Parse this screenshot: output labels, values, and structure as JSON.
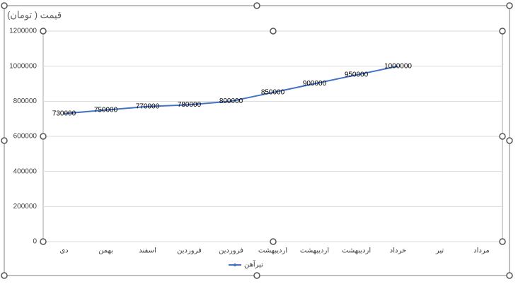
{
  "chart_data": {
    "type": "line",
    "title": "قیمت ( تومان)",
    "categories": [
      "دی",
      "بهمن",
      "اسفند",
      "فروردین",
      "فروردین",
      "اردیبهشت",
      "اردیبهشت",
      "اردیبهشت",
      "خرداد",
      "تیر",
      "مرداد"
    ],
    "series": [
      {
        "name": "تیرآهن",
        "color": "#4472c4",
        "values": [
          730000,
          750000,
          770000,
          780000,
          800000,
          850000,
          900000,
          950000,
          1000000,
          null,
          null
        ]
      }
    ],
    "ylim": [
      0,
      1200000
    ],
    "yticks": [
      0,
      200000,
      400000,
      600000,
      800000,
      1000000,
      1200000
    ],
    "grid": true,
    "legend": "bottom"
  }
}
